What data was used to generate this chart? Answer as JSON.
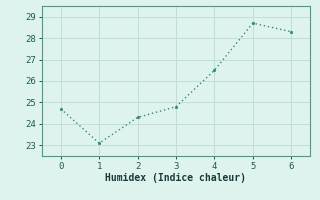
{
  "x": [
    0,
    1,
    2,
    3,
    4,
    5,
    6
  ],
  "y": [
    24.7,
    23.1,
    24.3,
    24.8,
    26.5,
    28.7,
    28.3
  ],
  "xlabel": "Humidex (Indice chaleur)",
  "ylim": [
    22.5,
    29.5
  ],
  "xlim": [
    -0.5,
    6.5
  ],
  "yticks": [
    23,
    24,
    25,
    26,
    27,
    28,
    29
  ],
  "xticks": [
    0,
    1,
    2,
    3,
    4,
    5,
    6
  ],
  "line_color": "#2e8b7a",
  "marker_color": "#2e8b7a",
  "bg_color": "#dff3ee",
  "grid_color": "#c2ddd8",
  "axis_color": "#4a9a8a",
  "tick_color": "#1a5a50",
  "label_color": "#1a3a3a",
  "font_family": "monospace"
}
